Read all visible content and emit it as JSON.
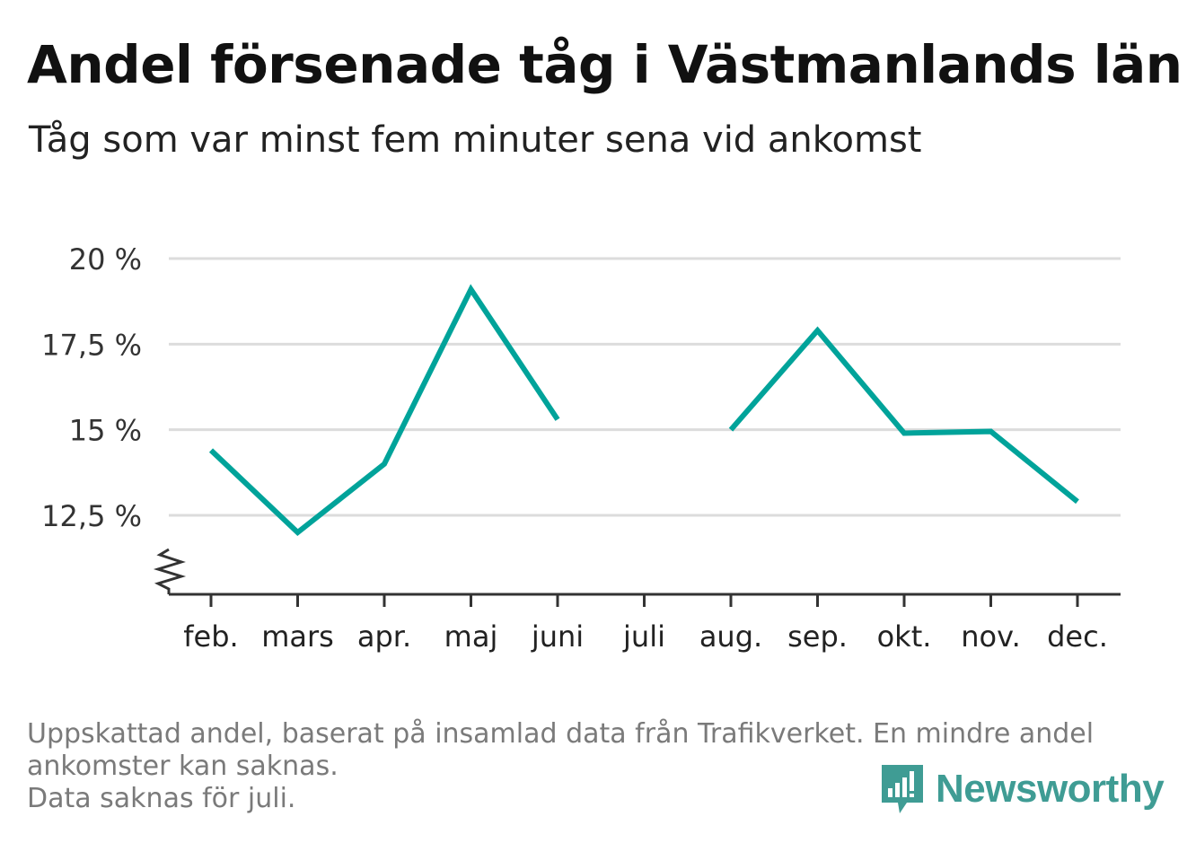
{
  "title": "Andel försenade tåg i Västmanlands län",
  "subtitle": "Tåg som var minst fem minuter sena vid ankomst",
  "chart_data": {
    "type": "line",
    "categories": [
      "feb.",
      "mars",
      "apr.",
      "maj",
      "juni",
      "juli",
      "aug.",
      "sep.",
      "okt.",
      "nov.",
      "dec."
    ],
    "series": [
      {
        "values": [
          14.4,
          12.0,
          14.0,
          19.1,
          15.3,
          null,
          15.0,
          17.9,
          14.9,
          14.95,
          12.9
        ]
      }
    ],
    "yticks": [
      12.5,
      15,
      17.5,
      20
    ],
    "ytick_labels": [
      "12,5 %",
      "15 %",
      "17,5 %",
      "20 %"
    ],
    "ylim": [
      10.25,
      20
    ],
    "axis_break": true,
    "grid": true,
    "line_color": "#00A39A"
  },
  "footnote": {
    "line1": "Uppskattad andel, baserat på insamlad data från Trafikverket. En mindre andel",
    "line2": "ankomster kan saknas.",
    "line3": "Data saknas för juli."
  },
  "logo": {
    "text": "Newsworthy",
    "icon": "newsworthy-logo-icon",
    "color": "#3F9C94"
  }
}
